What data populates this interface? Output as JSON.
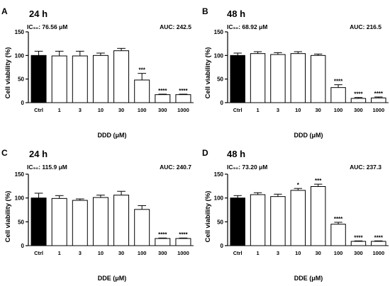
{
  "chart_data": [
    {
      "type": "bar",
      "panel": "A",
      "title": "24 h",
      "ic50": "IC₅₀: 76.56 μM",
      "auc": "AUC: 242.5",
      "ylabel": "Cell viability (%)",
      "xlabel": "DDD (μM)",
      "ylim": [
        0,
        150
      ],
      "yticks": [
        0,
        50,
        100,
        150
      ],
      "categories": [
        "Ctrl",
        "1",
        "3",
        "10",
        "30",
        "100",
        "300",
        "1000"
      ],
      "values": [
        100,
        99,
        99,
        100,
        110,
        48,
        17,
        17
      ],
      "errors": [
        9,
        10,
        10,
        5,
        5,
        14,
        1,
        1
      ],
      "significance": [
        "",
        "",
        "",
        "",
        "",
        "***",
        "****",
        "****"
      ],
      "fills": [
        "#000000",
        "#ffffff",
        "#ffffff",
        "#ffffff",
        "#ffffff",
        "#ffffff",
        "#ffffff",
        "#ffffff"
      ]
    },
    {
      "type": "bar",
      "panel": "B",
      "title": "48 h",
      "ic50": "IC₅₀: 68.92 μM",
      "auc": "AUC: 216.5",
      "ylabel": "Cell viability (%)",
      "xlabel": "DDD (μM)",
      "ylim": [
        0,
        150
      ],
      "yticks": [
        0,
        50,
        100,
        150
      ],
      "categories": [
        "Ctrl",
        "1",
        "3",
        "10",
        "30",
        "100",
        "300",
        "1000"
      ],
      "values": [
        100,
        104,
        102,
        104,
        100,
        32,
        9,
        10
      ],
      "errors": [
        5,
        4,
        4,
        4,
        3,
        6,
        2,
        2
      ],
      "significance": [
        "",
        "",
        "",
        "",
        "",
        "****",
        "****",
        "****"
      ],
      "fills": [
        "#000000",
        "#ffffff",
        "#ffffff",
        "#ffffff",
        "#ffffff",
        "#ffffff",
        "#ffffff",
        "#ffffff"
      ]
    },
    {
      "type": "bar",
      "panel": "C",
      "title": "24 h",
      "ic50": "IC₅₀: 115.9 μM",
      "auc": "AUC: 240.7",
      "ylabel": "Cell viability (%)",
      "xlabel": "DDE (μM)",
      "ylim": [
        0,
        150
      ],
      "yticks": [
        0,
        50,
        100,
        150
      ],
      "categories": [
        "Ctrl",
        "1",
        "3",
        "10",
        "30",
        "100",
        "300",
        "1000"
      ],
      "values": [
        100,
        99,
        95,
        101,
        106,
        76,
        15,
        15
      ],
      "errors": [
        10,
        6,
        3,
        5,
        8,
        8,
        1,
        1
      ],
      "significance": [
        "",
        "",
        "",
        "",
        "",
        "",
        "****",
        "****"
      ],
      "fills": [
        "#000000",
        "#ffffff",
        "#ffffff",
        "#ffffff",
        "#ffffff",
        "#ffffff",
        "#ffffff",
        "#ffffff"
      ]
    },
    {
      "type": "bar",
      "panel": "D",
      "title": "48 h",
      "ic50": "IC₅₀: 73.20 μM",
      "auc": "AUC: 237.3",
      "ylabel": "Cell viability (%)",
      "xlabel": "DDE (μM)",
      "ylim": [
        0,
        150
      ],
      "yticks": [
        0,
        50,
        100,
        150
      ],
      "categories": [
        "Ctrl",
        "1",
        "3",
        "10",
        "30",
        "100",
        "300",
        "1000"
      ],
      "values": [
        100,
        107,
        103,
        116,
        124,
        45,
        9,
        9
      ],
      "errors": [
        5,
        4,
        5,
        4,
        5,
        4,
        1,
        1
      ],
      "significance": [
        "",
        "",
        "",
        "*",
        "***",
        "****",
        "****",
        "****"
      ],
      "fills": [
        "#000000",
        "#ffffff",
        "#ffffff",
        "#ffffff",
        "#ffffff",
        "#ffffff",
        "#ffffff",
        "#ffffff"
      ]
    }
  ]
}
